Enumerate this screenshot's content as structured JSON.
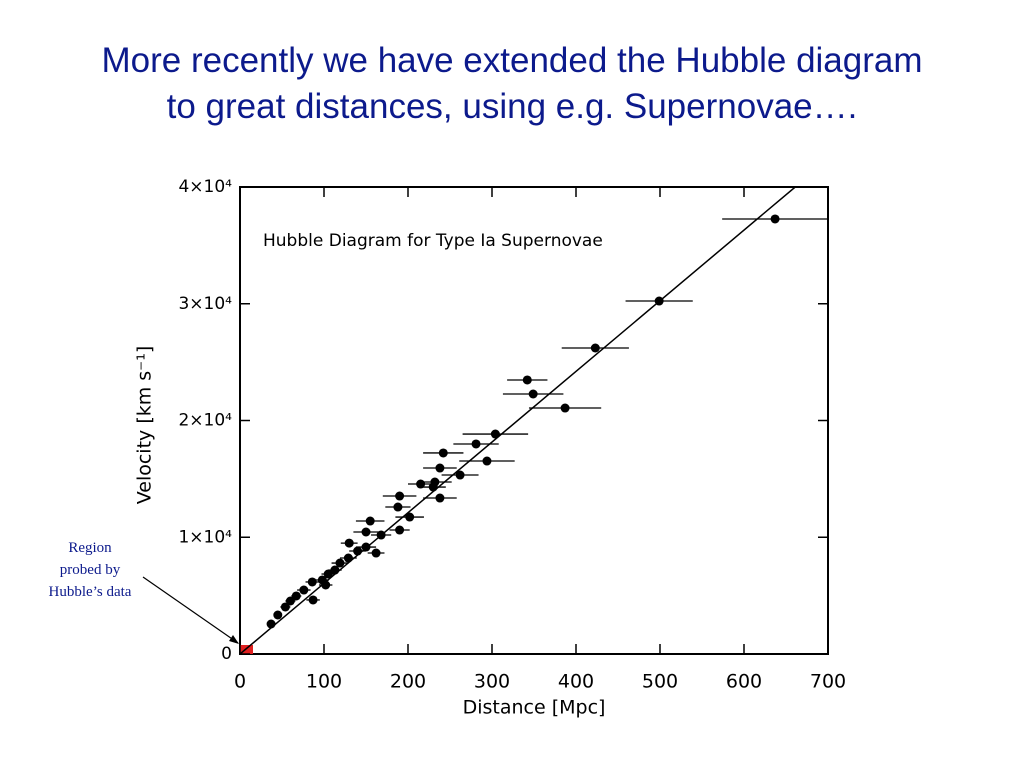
{
  "title_lines": [
    "More recently we have extended the Hubble diagram",
    "to great distances, using e.g. Supernovae…."
  ],
  "annotation_lines": [
    "Region",
    "probed by",
    "Hubble’s data"
  ],
  "chart_data": {
    "type": "scatter",
    "title": "Hubble Diagram for Type Ia Supernovae",
    "x_label": "Distance [Mpc]",
    "y_label": "Velocity [km s⁻¹]",
    "xlim": [
      0,
      700
    ],
    "ylim": [
      0,
      40000
    ],
    "xticks": [
      0,
      100,
      200,
      300,
      400,
      500,
      600,
      700
    ],
    "yticks": [
      0,
      {
        "value": 10000,
        "label": "1×10⁴"
      },
      {
        "value": 20000,
        "label": "2×10⁴"
      },
      {
        "value": 30000,
        "label": "3×10⁴"
      },
      {
        "value": 40000,
        "label": "4×10⁴"
      }
    ],
    "grid": false,
    "color": "#000000",
    "x": [
      637,
      499,
      423,
      342,
      349,
      387,
      304,
      281,
      242,
      294,
      238,
      262,
      232,
      215,
      230,
      190,
      238,
      188,
      155,
      202,
      190,
      150,
      168,
      130,
      150,
      162,
      140,
      129,
      119,
      113,
      105,
      98,
      86,
      76,
      67,
      60,
      54,
      45,
      37,
      87,
      102
    ],
    "xerr": [
      63,
      40,
      40,
      24,
      36,
      43,
      39,
      27,
      24,
      33,
      20,
      22,
      20,
      15,
      15,
      20,
      20,
      15,
      17,
      17,
      12,
      15,
      12,
      10,
      12,
      10,
      10,
      10,
      10,
      8,
      8,
      8,
      8,
      8,
      6,
      6,
      6,
      5,
      5,
      8,
      8
    ],
    "values": [
      37260,
      30235,
      26210,
      23470,
      22270,
      21070,
      18840,
      17990,
      17220,
      16530,
      15930,
      15330,
      14730,
      14560,
      14300,
      13530,
      13360,
      12590,
      11390,
      11730,
      10620,
      10450,
      10190,
      9500,
      9160,
      8650,
      8820,
      8220,
      7790,
      7190,
      6850,
      6340,
      6170,
      5480,
      4970,
      4540,
      4030,
      3340,
      2570,
      4630,
      5910
    ],
    "fit": {
      "x": [
        0,
        661
      ],
      "y": [
        0,
        40000
      ]
    }
  }
}
